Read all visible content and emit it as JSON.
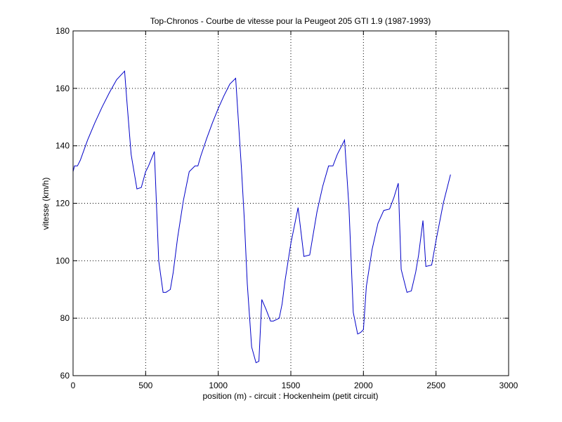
{
  "chart_data": {
    "type": "line",
    "title": "Top-Chronos - Courbe de vitesse pour la Peugeot 205 GTI 1.9 (1987-1993)",
    "xlabel": "position (m) - circuit : Hockenheim (petit circuit)",
    "ylabel": "vitesse (km/h)",
    "xlim": [
      0,
      3000
    ],
    "ylim": [
      60,
      180
    ],
    "xticks": [
      0,
      500,
      1000,
      1500,
      2000,
      2500,
      3000
    ],
    "yticks": [
      60,
      80,
      100,
      120,
      140,
      160,
      180
    ],
    "grid": true,
    "line_color": "#0000c8",
    "series": [
      {
        "x": [
          0,
          10,
          30,
          50,
          100,
          150,
          200,
          250,
          300,
          355,
          370,
          400,
          440,
          470,
          500,
          520,
          560,
          590,
          620,
          640,
          670,
          690,
          720,
          760,
          800,
          840,
          860,
          880,
          920,
          960,
          1000,
          1040,
          1080,
          1120,
          1160,
          1180,
          1200,
          1230,
          1260,
          1280,
          1300,
          1330,
          1360,
          1380,
          1420,
          1440,
          1460,
          1500,
          1550,
          1590,
          1630,
          1680,
          1720,
          1760,
          1790,
          1820,
          1870,
          1900,
          1930,
          1960,
          1980,
          2000,
          2020,
          2060,
          2100,
          2140,
          2180,
          2210,
          2240,
          2260,
          2300,
          2330,
          2360,
          2380,
          2410,
          2430,
          2470,
          2500,
          2550,
          2600
        ],
        "y": [
          131,
          133,
          133,
          135,
          142,
          148,
          153.5,
          158.5,
          163,
          166,
          156,
          137,
          125,
          125.5,
          131,
          133,
          138,
          100,
          89,
          89,
          90,
          96,
          108,
          121,
          131,
          133,
          133,
          136.5,
          142.5,
          148,
          153,
          157.5,
          161.5,
          163.5,
          132,
          114,
          92,
          70,
          64.5,
          65,
          86.5,
          83,
          79,
          79,
          80,
          85,
          93,
          106,
          118.5,
          101.5,
          102,
          117,
          126,
          133,
          133,
          137,
          142,
          119,
          82,
          74.5,
          75,
          76,
          91,
          104,
          113,
          117.5,
          118,
          122,
          127,
          97,
          89,
          89.5,
          96,
          102,
          114,
          98,
          98.5,
          107,
          120,
          130
        ]
      }
    ]
  }
}
